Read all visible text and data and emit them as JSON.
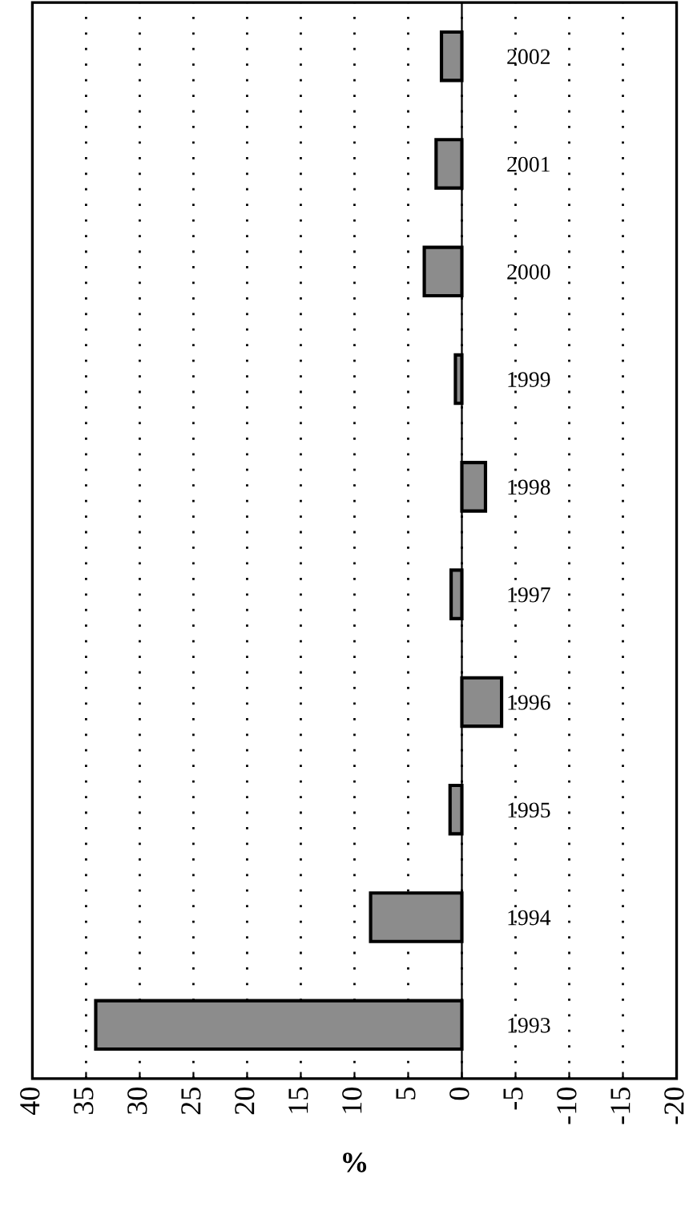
{
  "chart_data": {
    "type": "bar",
    "orientation": "horizontal",
    "xlabel": "%",
    "categories": [
      "2002",
      "2001",
      "2000",
      "1999",
      "1998",
      "1997",
      "1996",
      "1995",
      "1994",
      "1993"
    ],
    "values": [
      1.9,
      2.4,
      3.5,
      0.6,
      -2.2,
      1.0,
      -3.7,
      1.1,
      8.5,
      34.1
    ],
    "color": "#8c8c8c",
    "xlim": [
      40,
      -20
    ],
    "xticks": [
      40,
      35,
      30,
      25,
      20,
      15,
      10,
      5,
      0,
      -5,
      -10,
      -15,
      -20
    ],
    "grid": "x"
  }
}
